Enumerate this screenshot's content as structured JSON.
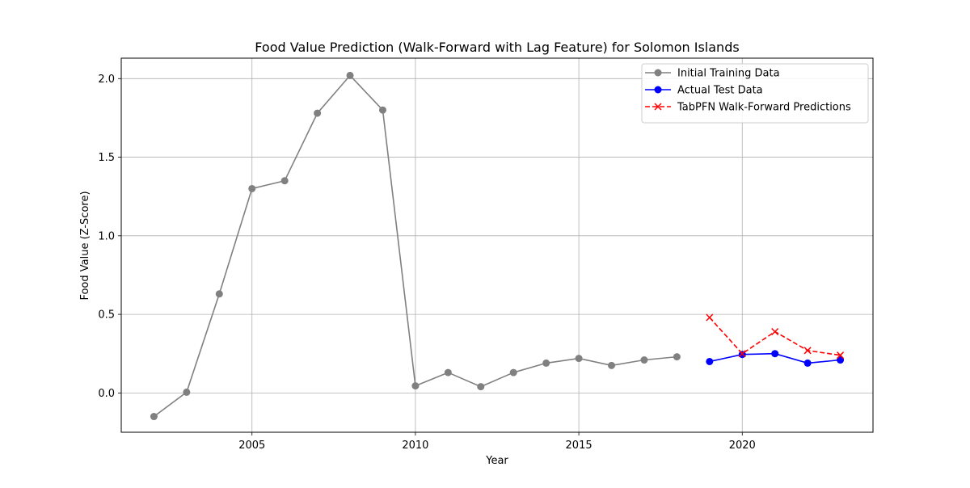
{
  "chart_data": {
    "type": "line",
    "title": "Food Value Prediction (Walk-Forward with Lag Feature) for Solomon Islands",
    "xlabel": "Year",
    "ylabel": "Food Value (Z-Score)",
    "xlim": [
      2001,
      2024
    ],
    "ylim": [
      -0.25,
      2.13
    ],
    "xticks": [
      2005,
      2010,
      2015,
      2020
    ],
    "yticks": [
      0.0,
      0.5,
      1.0,
      1.5,
      2.0
    ],
    "xtick_labels": [
      "2005",
      "2010",
      "2015",
      "2020"
    ],
    "ytick_labels": [
      "0.0",
      "0.5",
      "1.0",
      "1.5",
      "2.0"
    ],
    "grid": true,
    "legend_position": "top-right",
    "series": [
      {
        "name": "Initial Training Data",
        "color": "#808080",
        "marker": "circle",
        "linestyle": "solid",
        "x": [
          2002,
          2003,
          2004,
          2005,
          2006,
          2007,
          2008,
          2009,
          2010,
          2011,
          2012,
          2013,
          2014,
          2015,
          2016,
          2017,
          2018
        ],
        "y": [
          -0.15,
          0.005,
          0.63,
          1.3,
          1.35,
          1.78,
          2.02,
          1.8,
          0.045,
          0.13,
          0.04,
          0.13,
          0.19,
          0.22,
          0.175,
          0.21,
          0.23
        ]
      },
      {
        "name": "Actual Test Data",
        "color": "#0000ff",
        "marker": "circle",
        "linestyle": "solid",
        "x": [
          2019,
          2020,
          2021,
          2022,
          2023
        ],
        "y": [
          0.2,
          0.245,
          0.25,
          0.19,
          0.21
        ]
      },
      {
        "name": "TabPFN Walk-Forward Predictions",
        "color": "#ff0000",
        "marker": "x",
        "linestyle": "dashed",
        "x": [
          2019,
          2020,
          2021,
          2022,
          2023
        ],
        "y": [
          0.48,
          0.25,
          0.39,
          0.27,
          0.24
        ]
      }
    ]
  }
}
